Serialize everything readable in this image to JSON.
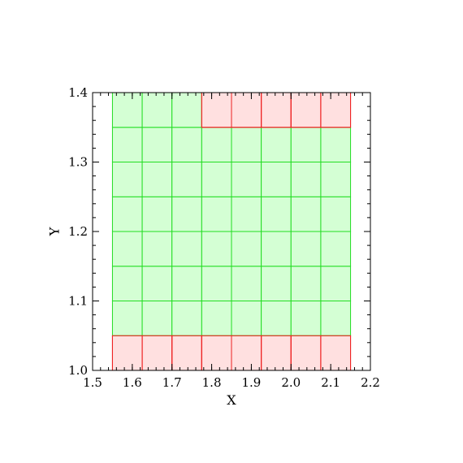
{
  "chart_data": {
    "type": "heatmap",
    "title": "",
    "xlabel": "X",
    "ylabel": "Y",
    "xlim": [
      1.5,
      2.2
    ],
    "ylim": [
      1.0,
      1.4
    ],
    "grid": false,
    "x_ticks": [
      1.5,
      1.6,
      1.7,
      1.8,
      1.9,
      2.0,
      2.1,
      2.2
    ],
    "x_tick_labels": [
      "1.5",
      "1.6",
      "1.7",
      "1.8",
      "1.9",
      "2.0",
      "2.1",
      "2.2"
    ],
    "y_ticks": [
      1.0,
      1.1,
      1.2,
      1.3,
      1.4
    ],
    "y_tick_labels": [
      "1.0",
      "1.1",
      "1.2",
      "1.3",
      "1.4"
    ],
    "x_minor_step": 0.02,
    "y_minor_step": 0.02,
    "cell_x_edges": [
      1.55,
      1.625,
      1.7,
      1.775,
      1.85,
      1.925,
      2.0,
      2.075,
      2.15
    ],
    "cell_y_edges": [
      1.0,
      1.05,
      1.1,
      1.15,
      1.2,
      1.25,
      1.3,
      1.35,
      1.4
    ],
    "status_rows_bottom_to_top": [
      [
        "red",
        "red",
        "red",
        "red",
        "red",
        "red",
        "red",
        "red"
      ],
      [
        "green",
        "green",
        "green",
        "green",
        "green",
        "green",
        "green",
        "green"
      ],
      [
        "green",
        "green",
        "green",
        "green",
        "green",
        "green",
        "green",
        "green"
      ],
      [
        "green",
        "green",
        "green",
        "green",
        "green",
        "green",
        "green",
        "green"
      ],
      [
        "green",
        "green",
        "green",
        "green",
        "green",
        "green",
        "green",
        "green"
      ],
      [
        "green",
        "green",
        "green",
        "green",
        "green",
        "green",
        "green",
        "green"
      ],
      [
        "green",
        "green",
        "green",
        "green",
        "green",
        "green",
        "green",
        "green"
      ],
      [
        "green",
        "green",
        "green",
        "red",
        "red",
        "red",
        "red",
        "red"
      ]
    ],
    "colors": {
      "green_fill": "#d4ffd4",
      "green_stroke": "#22dd22",
      "red_fill": "#ffe0e0",
      "red_stroke": "#ee2222",
      "axes": "#000000"
    }
  }
}
